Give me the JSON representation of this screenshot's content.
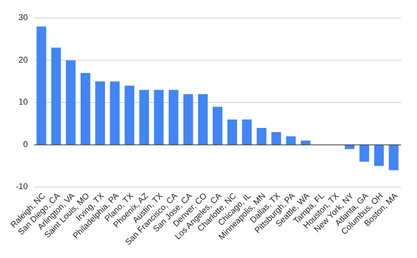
{
  "chart_data": {
    "type": "bar",
    "categories": [
      "Raleigh, NC",
      "San Diego, CA",
      "Arlington, VA",
      "Saint Louis, MO",
      "Irving, TX",
      "Philadelphia, PA",
      "Plano, TX",
      "Phoenix, AZ",
      "Austin, TX",
      "San Francisco, CA",
      "San Jose, CA",
      "Denver, CO",
      "Los Angeles, CA",
      "Charlotte, NC",
      "Chicago, IL",
      "Minneapolis, MN",
      "Dallas, TX",
      "Pittsburgh, PA",
      "Seattle, WA",
      "Tampa, FL",
      "Houston, TX",
      "New York, NY",
      "Atlanta, GA",
      "Columbus, OH",
      "Boston, MA"
    ],
    "values": [
      28,
      23,
      20,
      17,
      15,
      15,
      14,
      13,
      13,
      13,
      12,
      12,
      9,
      6,
      6,
      4,
      3,
      2,
      1,
      0,
      0,
      -1,
      -4,
      -5,
      -6
    ],
    "color": "#4285f4",
    "ylim": [
      -10,
      30
    ],
    "yticks": [
      -10,
      0,
      10,
      20,
      30
    ],
    "grid": true
  }
}
